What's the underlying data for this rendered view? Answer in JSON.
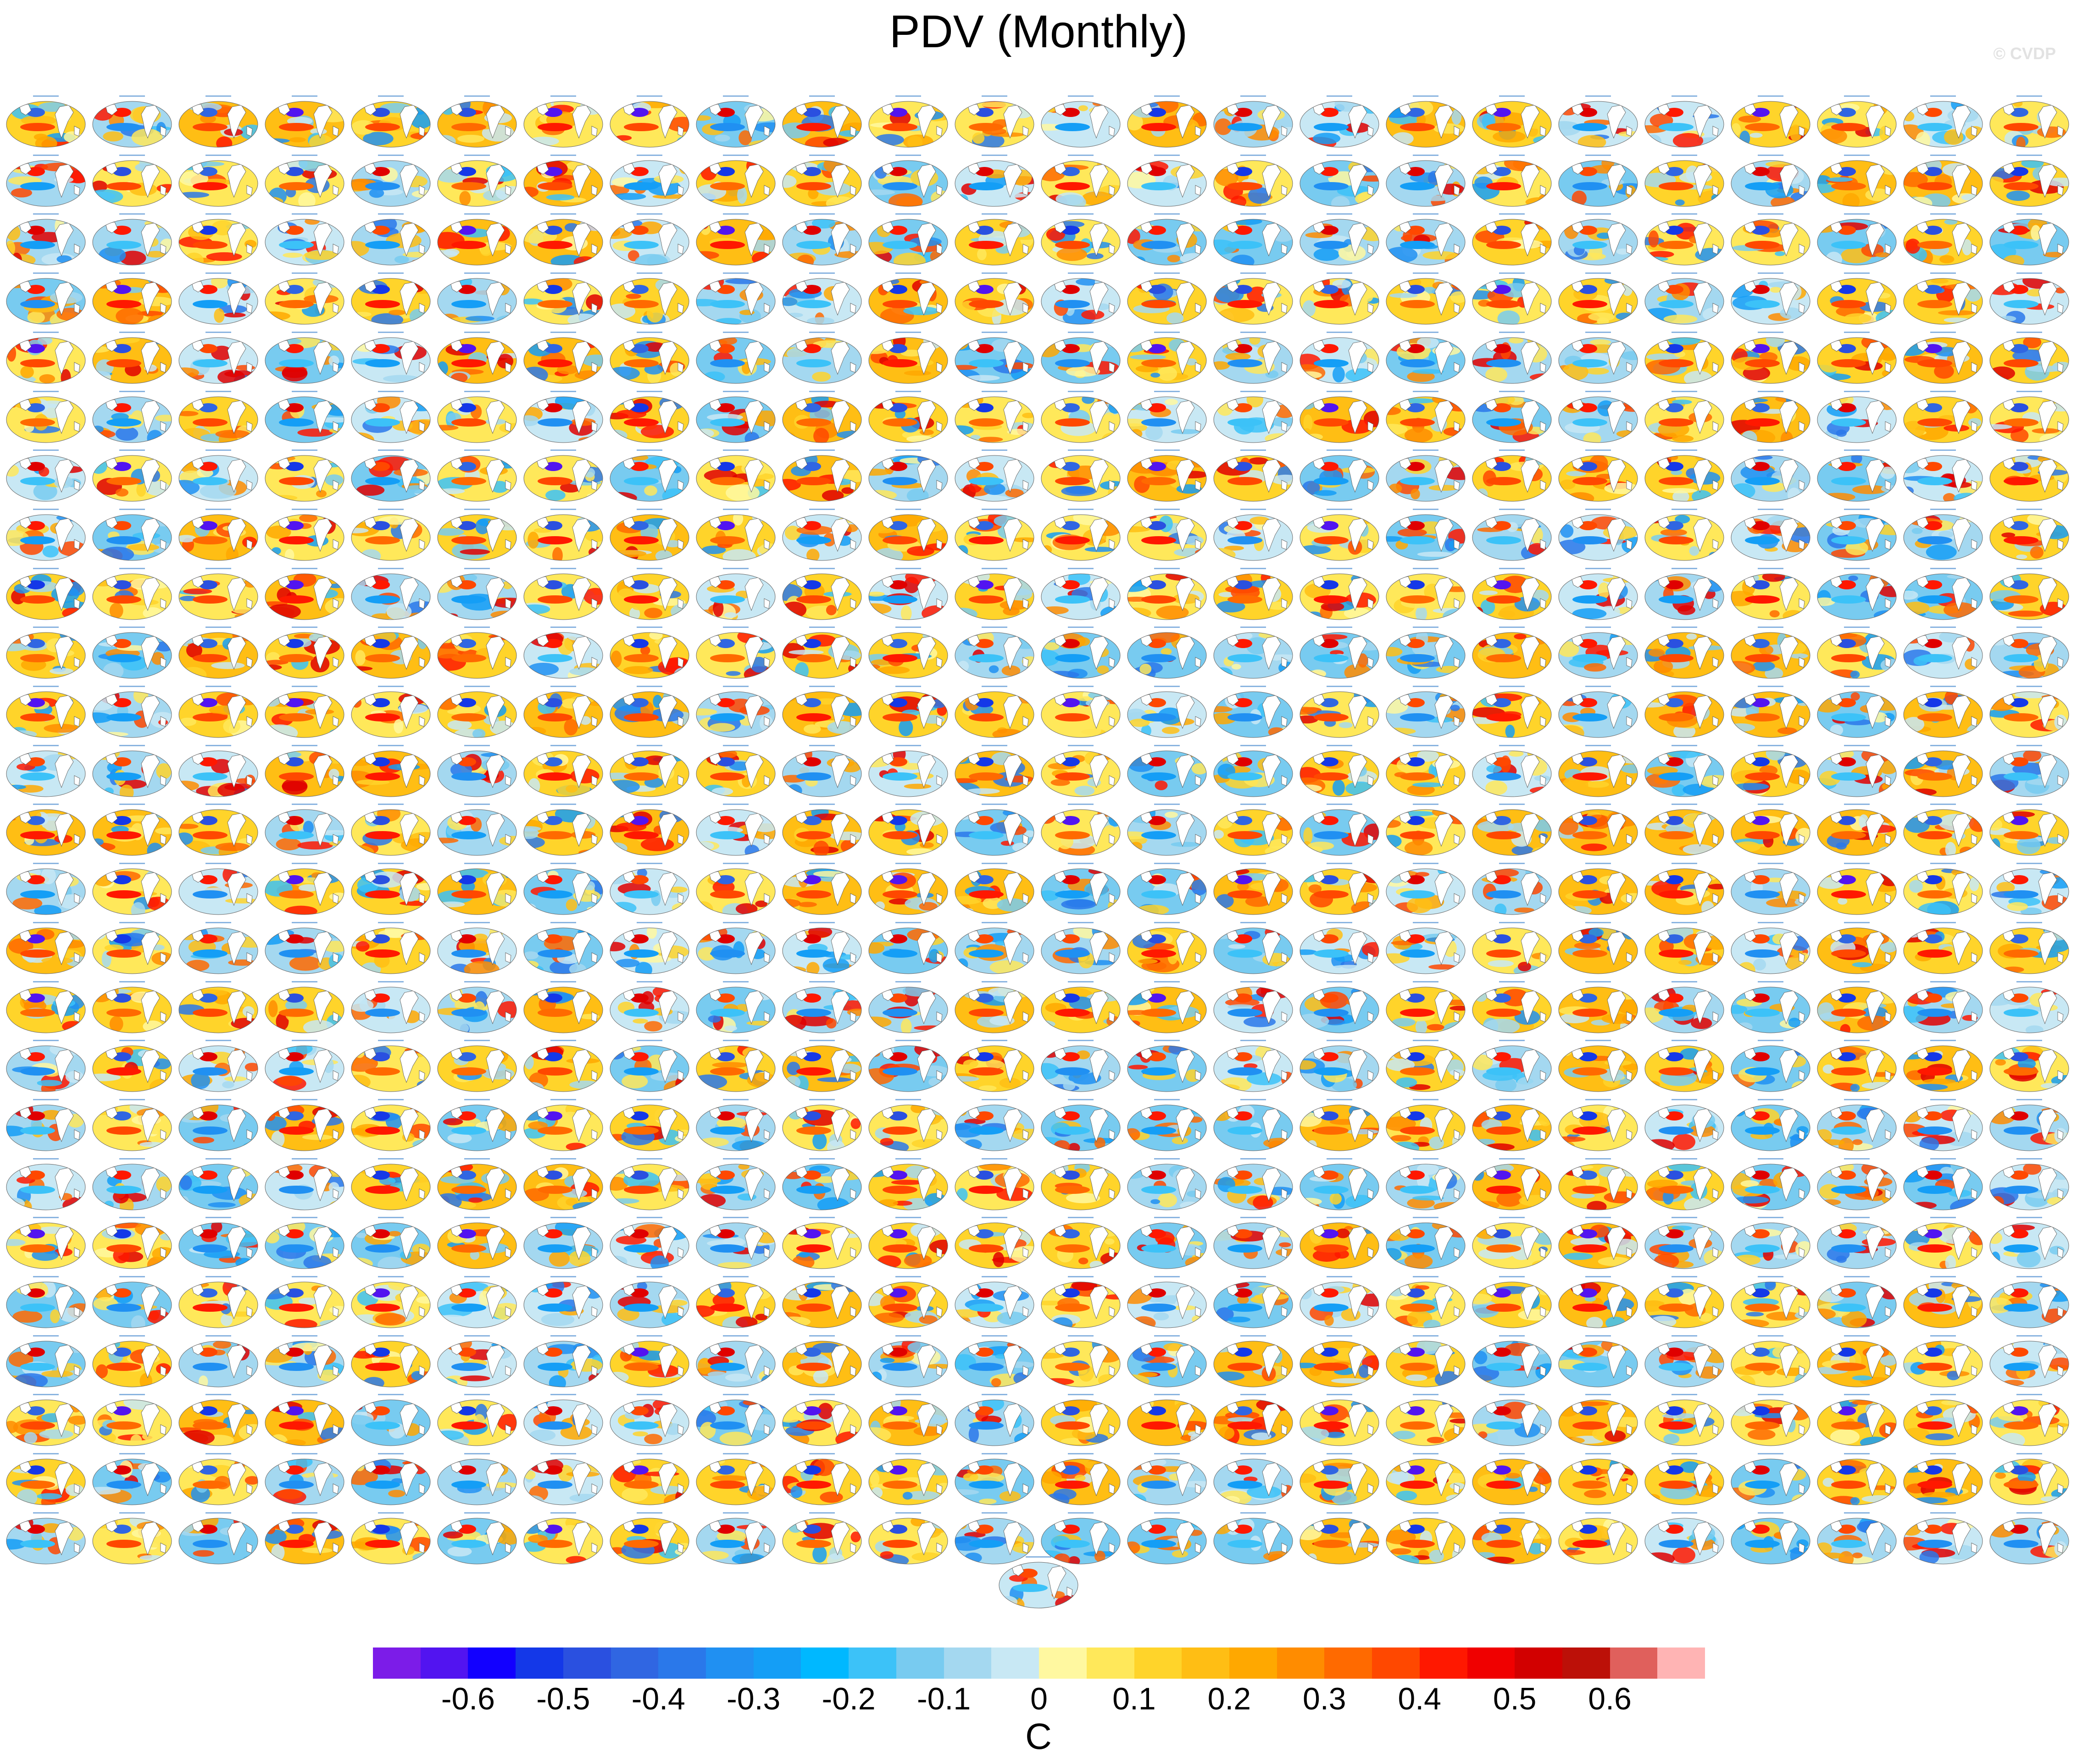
{
  "title": "PDV (Monthly)",
  "watermark": "© CVDP",
  "units": "C",
  "grid": {
    "columns": 24,
    "rows": 25,
    "extra_panels": 1
  },
  "colorbar": {
    "colors": [
      "#7c1ce8",
      "#5214f0",
      "#1200ff",
      "#1438e8",
      "#2a50e0",
      "#3066e2",
      "#2a78ea",
      "#2090f2",
      "#149ef6",
      "#00b8ff",
      "#3cc2f8",
      "#78cbf0",
      "#a4d8f0",
      "#c8e8f4",
      "#fff8a0",
      "#ffe85a",
      "#ffd42a",
      "#ffbe14",
      "#ffa800",
      "#ff8c00",
      "#ff6a00",
      "#ff4800",
      "#ff1800",
      "#f00000",
      "#d20000",
      "#bc1008",
      "#e0605c",
      "#ffb4b4"
    ],
    "ticks": [
      "-0.6",
      "-0.5",
      "-0.4",
      "-0.3",
      "-0.2",
      "-0.1",
      "0",
      "0.1",
      "0.2",
      "0.3",
      "0.4",
      "0.5",
      "0.6"
    ]
  }
}
